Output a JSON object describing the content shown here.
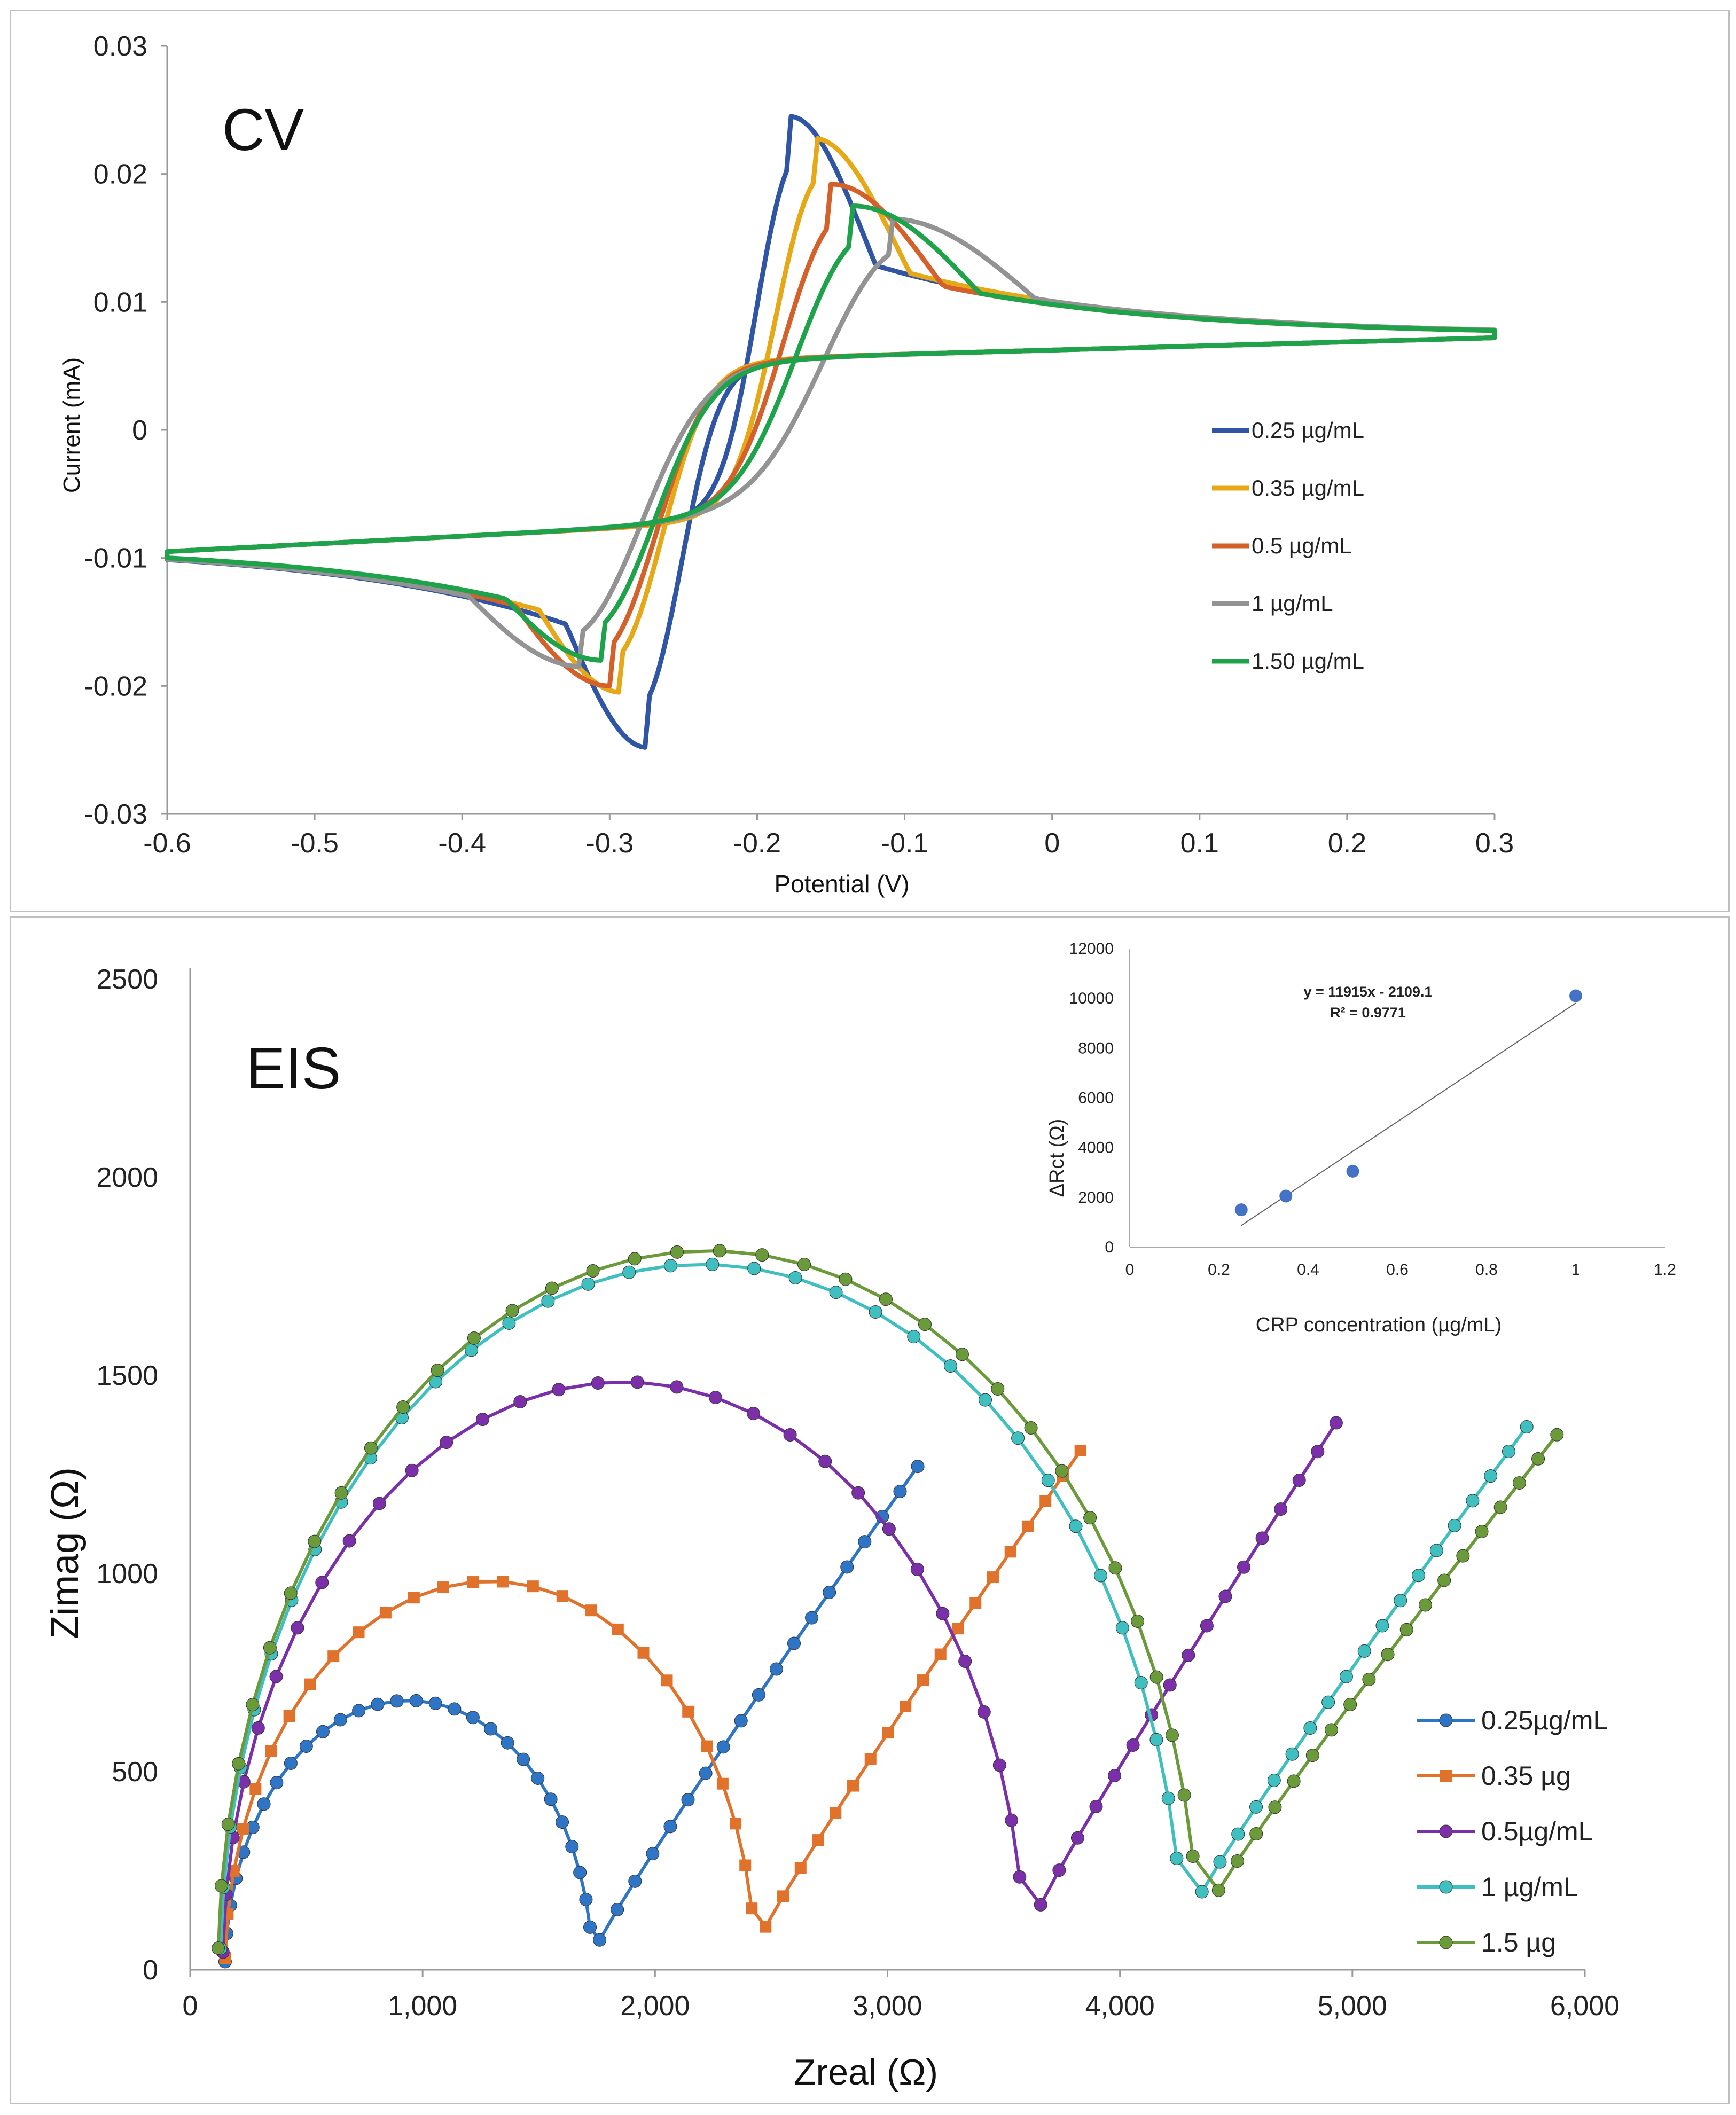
{
  "chart_data": [
    {
      "type": "line",
      "title": "CV",
      "xlabel": "Potential (V)",
      "ylabel": "Current (mA)",
      "xlim": [
        -0.6,
        0.3
      ],
      "ylim": [
        -0.03,
        0.03
      ],
      "x_ticks": [
        "-0.6",
        "-0.5",
        "-0.4",
        "-0.3",
        "-0.2",
        "-0.1",
        "0",
        "0.1",
        "0.2",
        "0.3"
      ],
      "y_ticks": [
        "0.03",
        "0.02",
        "0.01",
        "0",
        "-0.01",
        "-0.02",
        "-0.03"
      ],
      "x_tick_values": [
        -0.6,
        -0.5,
        -0.4,
        -0.3,
        -0.2,
        -0.1,
        0,
        0.1,
        0.2,
        0.3
      ],
      "y_tick_values": [
        0.03,
        0.02,
        0.01,
        0,
        -0.01,
        -0.02,
        -0.03
      ],
      "legend": "right",
      "series": [
        {
          "name": "0.25 µg/mL",
          "color": "#2f55a4",
          "ipa": 0.0245,
          "epa": -0.178,
          "ipc": -0.0248,
          "epc": -0.275,
          "wa": 0.028,
          "wc": 0.03
        },
        {
          "name": "0.35 µg/mL",
          "color": "#e6a817",
          "ipa": 0.0228,
          "epa": -0.162,
          "ipc": -0.0205,
          "epc": -0.292,
          "wa": 0.032,
          "wc": 0.035
        },
        {
          "name": "0.5 µg/mL",
          "color": "#d4612a",
          "ipa": 0.0192,
          "epa": -0.15,
          "ipc": -0.02,
          "epc": -0.3,
          "wa": 0.04,
          "wc": 0.04
        },
        {
          "name": "1 µg/mL",
          "color": "#939393",
          "ipa": 0.0165,
          "epa": -0.11,
          "ipc": -0.0185,
          "epc": -0.318,
          "wa": 0.055,
          "wc": 0.05
        },
        {
          "name": "1.50 µg/mL",
          "color": "#1fa34a",
          "ipa": 0.0175,
          "epa": -0.135,
          "ipc": -0.018,
          "epc": -0.305,
          "wa": 0.047,
          "wc": 0.045
        }
      ]
    },
    {
      "type": "scatter",
      "title": "EIS",
      "xlabel": "Zreal (Ω)",
      "ylabel": "Zimag (Ω)",
      "xlim": [
        0,
        6000
      ],
      "ylim": [
        0,
        2500
      ],
      "x_ticks": [
        "0",
        "1,000",
        "2,000",
        "3,000",
        "4,000",
        "5,000",
        "6,000"
      ],
      "y_ticks": [
        "2500",
        "2000",
        "1500",
        "1000",
        "500",
        "0"
      ],
      "x_tick_values": [
        0,
        1000,
        2000,
        3000,
        4000,
        5000,
        6000
      ],
      "y_tick_values": [
        2500,
        2000,
        1500,
        1000,
        500,
        0
      ],
      "legend": "right",
      "series": [
        {
          "name": "0.25µg/mL",
          "color": "#2e75c6",
          "marker": "circle",
          "r0": 150,
          "rct": 1580,
          "end_x": 3130,
          "end_y": 1270,
          "n_arc": 28,
          "n_tail": 18
        },
        {
          "name": "0.35 µg",
          "color": "#e0722c",
          "marker": "square",
          "r0": 150,
          "rct": 2280,
          "end_x": 3830,
          "end_y": 1310,
          "n_arc": 26,
          "n_tail": 18
        },
        {
          "name": "0.5µg/mL",
          "color": "#7b2fa8",
          "marker": "circle",
          "r0": 140,
          "rct": 3450,
          "end_x": 4930,
          "end_y": 1380,
          "n_arc": 30,
          "n_tail": 16
        },
        {
          "name": "1 µg/mL",
          "color": "#3fbfbf",
          "marker": "circle",
          "r0": 130,
          "rct": 4140,
          "end_x": 5750,
          "end_y": 1370,
          "n_arc": 34,
          "n_tail": 18
        },
        {
          "name": "1.5 µg",
          "color": "#6a9a3a",
          "marker": "circle",
          "r0": 120,
          "rct": 4220,
          "end_x": 5880,
          "end_y": 1350,
          "n_arc": 34,
          "n_tail": 18
        }
      ],
      "inset": {
        "type": "scatter",
        "xlabel": "CRP concentration (µg/mL)",
        "ylabel": "ΔRct (Ω)",
        "xlim": [
          0,
          1.2
        ],
        "ylim": [
          0,
          12000
        ],
        "x_ticks": [
          "0",
          "0.2",
          "0.4",
          "0.6",
          "0.8",
          "1",
          "1.2"
        ],
        "y_ticks": [
          "12000",
          "10000",
          "8000",
          "6000",
          "4000",
          "2000",
          "0"
        ],
        "x_tick_values": [
          0,
          0.2,
          0.4,
          0.6,
          0.8,
          1.0,
          1.2
        ],
        "y_tick_values": [
          12000,
          10000,
          8000,
          6000,
          4000,
          2000,
          0
        ],
        "points": [
          {
            "x": 0.25,
            "y": 1500
          },
          {
            "x": 0.35,
            "y": 2050
          },
          {
            "x": 0.5,
            "y": 3050
          },
          {
            "x": 1.0,
            "y": 10100
          }
        ],
        "equation": "y = 11915x - 2109.1",
        "r2": "R² = 0.9771",
        "fit": {
          "slope": 11915,
          "intercept": -2109.1,
          "x_from": 0.25,
          "x_to": 1.0
        },
        "point_color": "#4472c4"
      }
    }
  ]
}
